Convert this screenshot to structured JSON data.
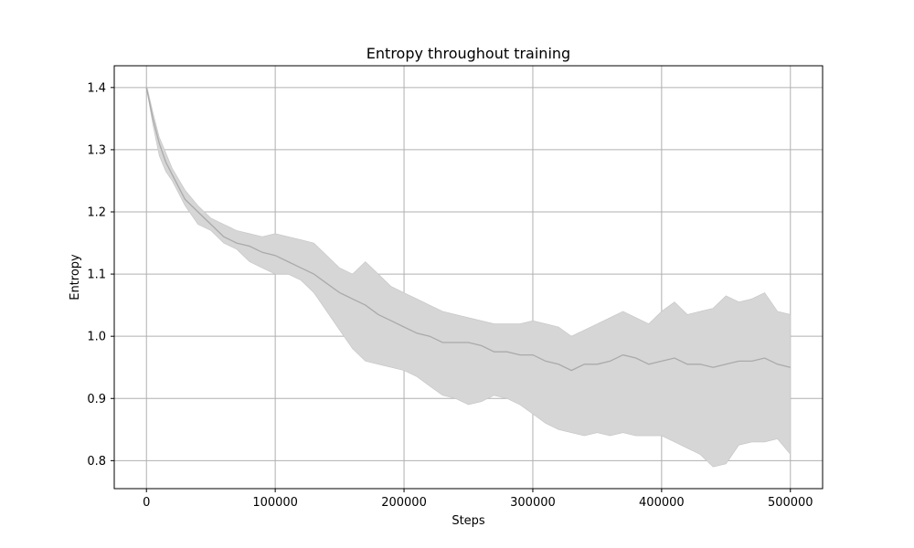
{
  "chart_data": {
    "type": "line",
    "title": "Entropy throughout training",
    "xlabel": "Steps",
    "ylabel": "Entropy",
    "xlim": [
      -25000,
      525000
    ],
    "ylim": [
      0.755,
      1.435
    ],
    "xticks": [
      0,
      100000,
      200000,
      300000,
      400000,
      500000
    ],
    "yticks": [
      0.8,
      0.9,
      1.0,
      1.1,
      1.2,
      1.3,
      1.4
    ],
    "grid": true,
    "colors": {
      "line": "#aaaaaa",
      "band": "#d6d6d6",
      "band_edge": "#c4c4c4"
    },
    "series": [
      {
        "type": "line_with_band",
        "x": [
          0,
          5000,
          10000,
          15000,
          20000,
          30000,
          40000,
          50000,
          60000,
          70000,
          80000,
          90000,
          100000,
          110000,
          120000,
          130000,
          140000,
          150000,
          160000,
          170000,
          180000,
          190000,
          200000,
          210000,
          220000,
          230000,
          240000,
          250000,
          260000,
          270000,
          280000,
          290000,
          300000,
          310000,
          320000,
          330000,
          340000,
          350000,
          360000,
          370000,
          380000,
          390000,
          400000,
          410000,
          420000,
          430000,
          440000,
          450000,
          460000,
          470000,
          480000,
          490000,
          500000
        ],
        "y": [
          1.4,
          1.35,
          1.31,
          1.28,
          1.26,
          1.22,
          1.2,
          1.18,
          1.16,
          1.15,
          1.145,
          1.135,
          1.13,
          1.12,
          1.11,
          1.1,
          1.085,
          1.07,
          1.06,
          1.05,
          1.035,
          1.025,
          1.015,
          1.005,
          1.0,
          0.99,
          0.99,
          0.99,
          0.985,
          0.975,
          0.975,
          0.97,
          0.97,
          0.96,
          0.955,
          0.945,
          0.955,
          0.955,
          0.96,
          0.97,
          0.965,
          0.955,
          0.96,
          0.965,
          0.955,
          0.955,
          0.95,
          0.955,
          0.96,
          0.96,
          0.965,
          0.955,
          0.95
        ],
        "upper": [
          1.405,
          1.36,
          1.32,
          1.295,
          1.27,
          1.235,
          1.21,
          1.19,
          1.18,
          1.17,
          1.165,
          1.16,
          1.165,
          1.16,
          1.155,
          1.15,
          1.13,
          1.11,
          1.1,
          1.12,
          1.1,
          1.08,
          1.07,
          1.06,
          1.05,
          1.04,
          1.035,
          1.03,
          1.025,
          1.02,
          1.02,
          1.02,
          1.025,
          1.02,
          1.015,
          1.0,
          1.01,
          1.02,
          1.03,
          1.04,
          1.03,
          1.02,
          1.04,
          1.055,
          1.035,
          1.04,
          1.045,
          1.065,
          1.055,
          1.06,
          1.07,
          1.04,
          1.035
        ],
        "lower": [
          1.4,
          1.34,
          1.29,
          1.265,
          1.25,
          1.21,
          1.18,
          1.17,
          1.15,
          1.14,
          1.12,
          1.11,
          1.1,
          1.1,
          1.09,
          1.07,
          1.04,
          1.01,
          0.98,
          0.96,
          0.955,
          0.95,
          0.945,
          0.935,
          0.92,
          0.905,
          0.9,
          0.89,
          0.895,
          0.905,
          0.9,
          0.89,
          0.875,
          0.86,
          0.85,
          0.845,
          0.84,
          0.845,
          0.84,
          0.845,
          0.84,
          0.84,
          0.84,
          0.83,
          0.82,
          0.81,
          0.79,
          0.795,
          0.825,
          0.83,
          0.83,
          0.835,
          0.81
        ]
      }
    ]
  }
}
